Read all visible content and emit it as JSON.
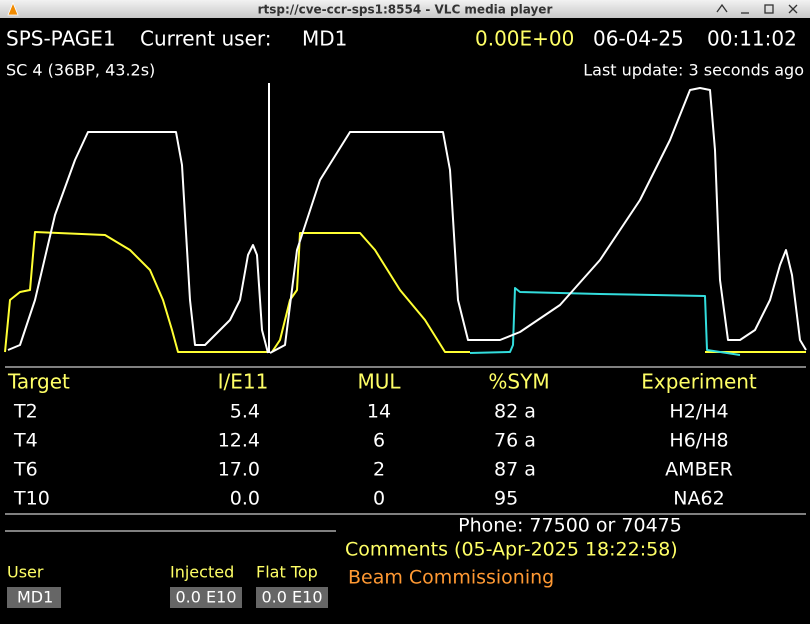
{
  "window": {
    "title": "rtsp://cve-ccr-sps1:8554 - VLC media player"
  },
  "header": {
    "page": "SPS-PAGE1",
    "user_label": "Current user:",
    "user": "MD1",
    "intensity": "0.00E+00",
    "date": "06-04-25",
    "time": "00:11:02"
  },
  "status": {
    "cycle": "SC 4 (36BP, 43.2s)",
    "last_update": "Last update: 3 seconds ago"
  },
  "table": {
    "columns": [
      "Target",
      "I/E11",
      "MUL",
      "%SYM",
      "Experiment"
    ],
    "rows": [
      [
        "T2",
        "5.4",
        "14",
        "82 a",
        "H2/H4"
      ],
      [
        "T4",
        "12.4",
        "6",
        "76 a",
        "H6/H8"
      ],
      [
        "T6",
        "17.0",
        "2",
        "87 a",
        "AMBER"
      ],
      [
        "T10",
        "0.0",
        "0",
        "95",
        "NA62"
      ]
    ]
  },
  "footer": {
    "phone": "Phone: 77500 or 70475",
    "comments": "Comments (05-Apr-2025 18:22:58)",
    "note": "Beam Commissioning",
    "user_label": "User",
    "user": "MD1",
    "injected_label": "Injected",
    "injected": "0.0 E10",
    "flattop_label": "Flat Top",
    "flattop": "0.0 E10"
  }
}
